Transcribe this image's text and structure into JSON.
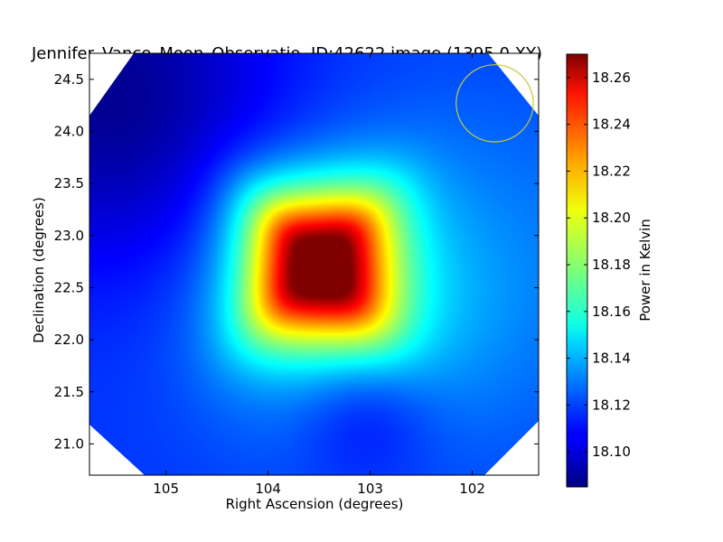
{
  "chart_data": {
    "type": "heatmap",
    "title": "Jennifer_Vance_Moon_Observatio, ID:42622 image (1395.0 XY)",
    "xlabel": "Right Ascension (degrees)",
    "ylabel": "Declination (degrees)",
    "xlim": [
      105.75,
      101.35
    ],
    "ylim": [
      20.7,
      24.75
    ],
    "x_reversed": true,
    "x_ticks": [
      105,
      104,
      103,
      102
    ],
    "x_tick_labels": [
      "105",
      "104",
      "103",
      "102"
    ],
    "y_ticks": [
      21.0,
      21.5,
      22.0,
      22.5,
      23.0,
      23.5,
      24.0,
      24.5
    ],
    "y_tick_labels": [
      "21.0",
      "21.5",
      "22.0",
      "22.5",
      "23.0",
      "23.5",
      "24.0",
      "24.5"
    ],
    "colormap": "jet",
    "grid": false,
    "colorbar": {
      "label": "Power in Kelvin",
      "range": [
        18.085,
        18.27
      ],
      "ticks": [
        18.1,
        18.12,
        18.14,
        18.16,
        18.18,
        18.2,
        18.22,
        18.24,
        18.26
      ],
      "tick_labels": [
        "18.10",
        "18.12",
        "18.14",
        "18.16",
        "18.18",
        "18.20",
        "18.22",
        "18.24",
        "18.26"
      ]
    },
    "field": {
      "background": 18.118,
      "components": [
        {
          "ra": 105.5,
          "dec": 24.3,
          "amp": -0.03,
          "sigma": 1.1
        },
        {
          "ra": 103.5,
          "dec": 22.72,
          "amp": 0.15,
          "sigma": 0.48,
          "power": 4
        },
        {
          "ra": 103.3,
          "dec": 22.3,
          "amp": 0.028,
          "sigma": 0.9
        },
        {
          "ra": 103.05,
          "dec": 21.35,
          "amp": -0.02,
          "sigma": 0.5
        },
        {
          "ra": 101.8,
          "dec": 22.7,
          "amp": 0.012,
          "sigma": 1.3
        }
      ]
    },
    "beam_circle": {
      "ra": 101.78,
      "dec": 24.27,
      "radius_deg": 0.37,
      "color": "#c8c83a"
    },
    "mask": "octagonal",
    "mask_color": "#ffffff"
  }
}
